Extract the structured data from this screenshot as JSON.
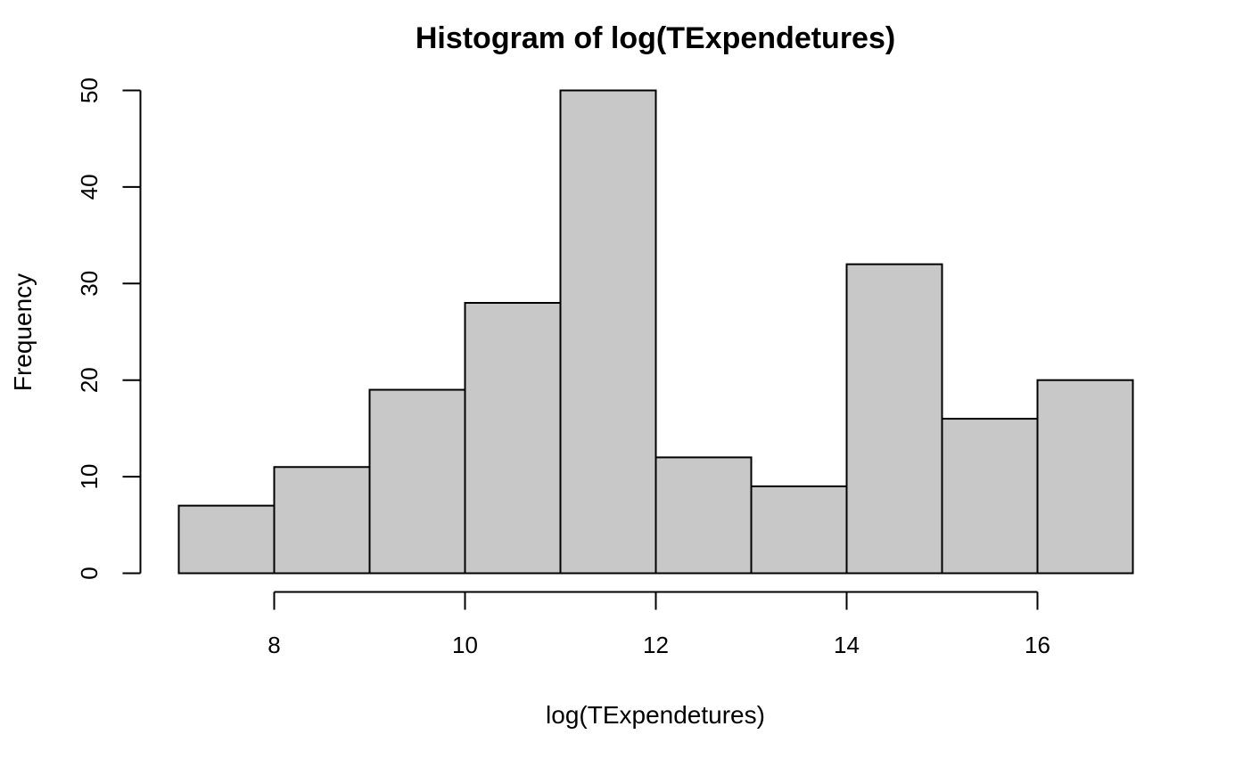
{
  "chart_data": {
    "type": "bar",
    "title": "Histogram of log(TExpendetures)",
    "xlabel": "log(TExpendetures)",
    "ylabel": "Frequency",
    "bins": [
      {
        "x0": 7,
        "x1": 8,
        "count": 7
      },
      {
        "x0": 8,
        "x1": 9,
        "count": 11
      },
      {
        "x0": 9,
        "x1": 10,
        "count": 19
      },
      {
        "x0": 10,
        "x1": 11,
        "count": 28
      },
      {
        "x0": 11,
        "x1": 12,
        "count": 50
      },
      {
        "x0": 12,
        "x1": 13,
        "count": 12
      },
      {
        "x0": 13,
        "x1": 14,
        "count": 9
      },
      {
        "x0": 14,
        "x1": 15,
        "count": 32
      },
      {
        "x0": 15,
        "x1": 16,
        "count": 16
      },
      {
        "x0": 16,
        "x1": 17,
        "count": 20
      }
    ],
    "xlim": [
      7,
      17
    ],
    "ylim": [
      0,
      50
    ],
    "xticks": [
      8,
      10,
      12,
      14,
      16
    ],
    "yticks": [
      0,
      10,
      20,
      30,
      40,
      50
    ],
    "bar_color": "#c8c8c8",
    "edge_color": "#000000",
    "grid": false,
    "legend": "none"
  }
}
